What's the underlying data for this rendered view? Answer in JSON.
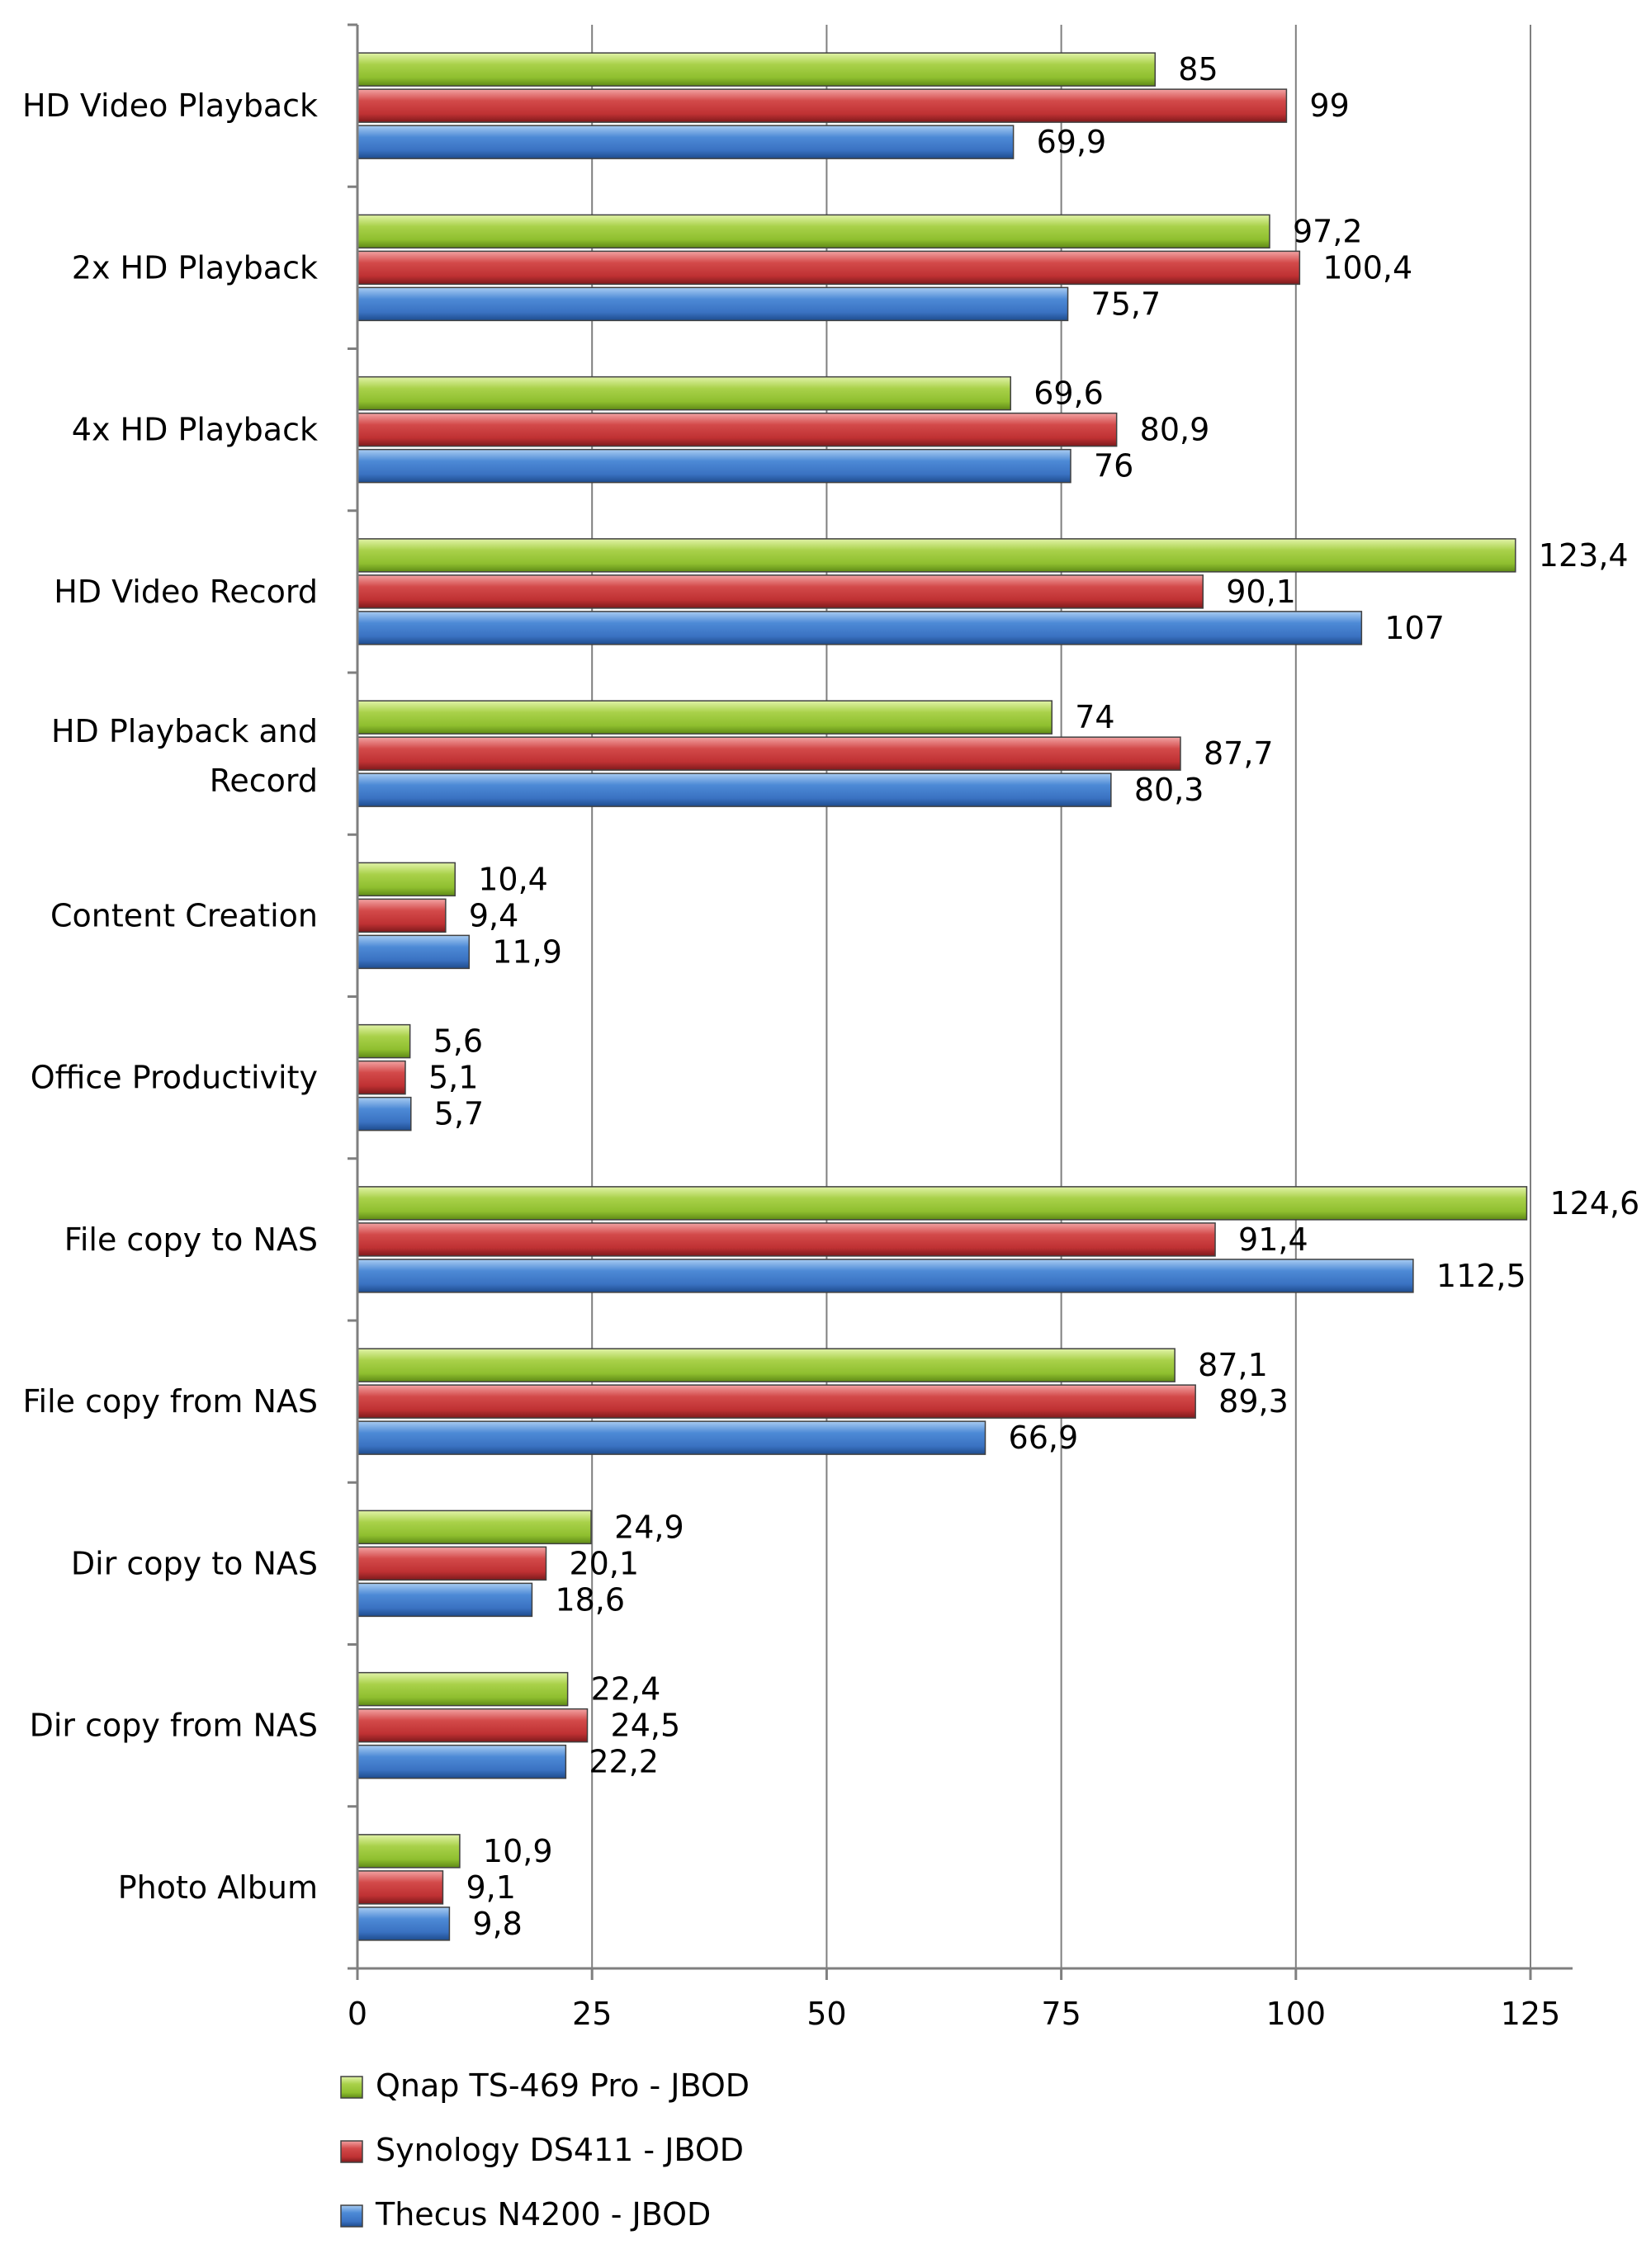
{
  "chart_data": {
    "type": "bar",
    "orientation": "horizontal",
    "title": "",
    "xlabel": "",
    "ylabel": "",
    "xlim": [
      0,
      125
    ],
    "ticks": [
      "0",
      "25",
      "50",
      "75",
      "100",
      "125"
    ],
    "tick_values": [
      0,
      25,
      50,
      75,
      100,
      125
    ],
    "grid": "vertical",
    "legend_position": "bottom",
    "categories": [
      "HD Video Playback",
      "2x HD Playback",
      "4x HD Playback",
      "HD Video Record",
      "HD Playback and Record",
      "Content Creation",
      "Office Productivity",
      "File copy to NAS",
      "File copy from NAS",
      "Dir copy to NAS",
      "Dir copy from NAS",
      "Photo Album"
    ],
    "series": [
      {
        "name": "Qnap TS-469 Pro - JBOD",
        "color": "#9bc63a",
        "values": [
          85,
          97.2,
          69.6,
          123.4,
          74,
          10.4,
          5.6,
          124.6,
          87.1,
          24.9,
          22.4,
          10.9
        ],
        "labels": [
          "85",
          "97,2",
          "69,6",
          "123,4",
          "74",
          "10,4",
          "5,6",
          "124,6",
          "87,1",
          "24,9",
          "22,4",
          "10,9"
        ]
      },
      {
        "name": "Synology DS411 - JBOD",
        "color": "#c0393b",
        "values": [
          99,
          100.4,
          80.9,
          90.1,
          87.7,
          9.4,
          5.1,
          91.4,
          89.3,
          20.1,
          24.5,
          9.1
        ],
        "labels": [
          "99",
          "100,4",
          "80,9",
          "90,1",
          "87,7",
          "9,4",
          "5,1",
          "91,4",
          "89,3",
          "20,1",
          "24,5",
          "9,1"
        ]
      },
      {
        "name": "Thecus N4200 - JBOD",
        "color": "#3b78c8",
        "values": [
          69.9,
          75.7,
          76,
          107,
          80.3,
          11.9,
          5.7,
          112.5,
          66.9,
          18.6,
          22.2,
          9.8
        ],
        "labels": [
          "69,9",
          "75,7",
          "76",
          "107",
          "80,3",
          "11,9",
          "5,7",
          "112,5",
          "66,9",
          "18,6",
          "22,2",
          "9,8"
        ]
      }
    ]
  }
}
